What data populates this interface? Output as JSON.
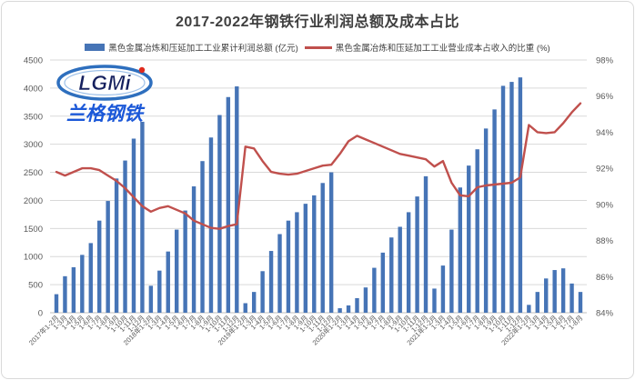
{
  "frame": {
    "title": "2017-2022年钢铁行业利润总额及成本占比"
  },
  "logo": {
    "brand": "LGMi",
    "name": "兰格钢铁"
  },
  "legend": [
    {
      "label": "黑色金属冶炼和压延加工工业累计利润总额 (亿元)",
      "color": "#4674b6",
      "type": "bar"
    },
    {
      "label": "黑色金属冶炼和压延加工工业营业成本占收入的比重 (%)",
      "color": "#c0504d",
      "type": "line"
    }
  ],
  "chart_data": {
    "type": "bar",
    "combo": "bar+line",
    "title": "2017-2022年钢铁行业利润总额及成本占比",
    "grid": true,
    "legend_position": "top",
    "x_labels_rotated_degrees": -45,
    "categories": [
      "2017年1-2月",
      "1-3月",
      "1-4月",
      "1-5月",
      "1-6月",
      "1-7月",
      "1-8月",
      "1-9月",
      "1-10月",
      "1-11月",
      "1-12月",
      "2018年1-2月",
      "1-3月",
      "1-4月",
      "1-5月",
      "1-6月",
      "1-7月",
      "1-8月",
      "1-9月",
      "1-10月",
      "1-11月",
      "1-12月",
      "2019年1-2月",
      "1-3月",
      "1-4月",
      "1-5月",
      "1-6月",
      "1-7月",
      "1-8月",
      "1-9月",
      "1-10月",
      "1-11月",
      "1-12月",
      "2020年1-2月",
      "1-3月",
      "1-4月",
      "1-5月",
      "1-6月",
      "1-7月",
      "1-8月",
      "1-9月",
      "1-10月",
      "1-11月",
      "1-12月",
      "2021年1-2月",
      "1-3月",
      "1-4月",
      "1-5月",
      "1-6月",
      "1-7月",
      "1-8月",
      "1-9月",
      "1-10月",
      "1-11月",
      "1-12月",
      "2022年1-2月",
      "1-3月",
      "1-4月",
      "1-5月",
      "1-6月",
      "1-7月",
      "1-8月"
    ],
    "series": [
      {
        "name": "黑色金属冶炼和压延加工工业累计利润总额 (亿元)",
        "type": "bar",
        "axis": "left",
        "color": "#4674b6",
        "values": [
          330,
          650,
          810,
          1030,
          1240,
          1640,
          1990,
          2390,
          2710,
          3100,
          3400,
          480,
          750,
          1090,
          1480,
          1820,
          2250,
          2700,
          3120,
          3520,
          3840,
          4030,
          170,
          370,
          740,
          1100,
          1400,
          1640,
          1790,
          1940,
          2090,
          2310,
          2500,
          80,
          130,
          260,
          450,
          800,
          1070,
          1340,
          1530,
          1790,
          2070,
          2430,
          430,
          840,
          1480,
          2230,
          2620,
          2910,
          3280,
          3620,
          4040,
          4110,
          4190,
          140,
          370,
          610,
          760,
          790,
          520,
          370
        ]
      },
      {
        "name": "黑色金属冶炼和压延加工工业营业成本占收入的比重 (%)",
        "type": "line",
        "axis": "right",
        "color": "#c0504d",
        "values": [
          91.8,
          91.6,
          91.8,
          92.0,
          92.0,
          91.9,
          91.6,
          91.3,
          90.9,
          90.4,
          89.9,
          89.6,
          89.8,
          89.9,
          89.7,
          89.5,
          89.1,
          88.9,
          88.7,
          88.65,
          88.8,
          88.9,
          93.2,
          93.1,
          92.4,
          91.8,
          91.7,
          91.65,
          91.7,
          91.85,
          92.0,
          92.15,
          92.2,
          92.8,
          93.5,
          93.8,
          93.6,
          93.4,
          93.2,
          93.0,
          92.8,
          92.7,
          92.6,
          92.5,
          92.1,
          92.4,
          91.2,
          90.5,
          90.45,
          90.95,
          91.05,
          91.1,
          91.15,
          91.2,
          91.5,
          94.4,
          94.0,
          93.95,
          94.0,
          94.5,
          95.1,
          95.6
        ]
      }
    ],
    "left_axis": {
      "min": 0,
      "max": 4500,
      "step": 500,
      "ticks": [
        "0",
        "500",
        "1000",
        "1500",
        "2000",
        "2500",
        "3000",
        "3500",
        "4000",
        "4500"
      ]
    },
    "right_axis": {
      "min": 84,
      "max": 98,
      "step": 2,
      "ticks": [
        "84%",
        "86%",
        "88%",
        "90%",
        "92%",
        "94%",
        "96%",
        "98%"
      ]
    }
  }
}
